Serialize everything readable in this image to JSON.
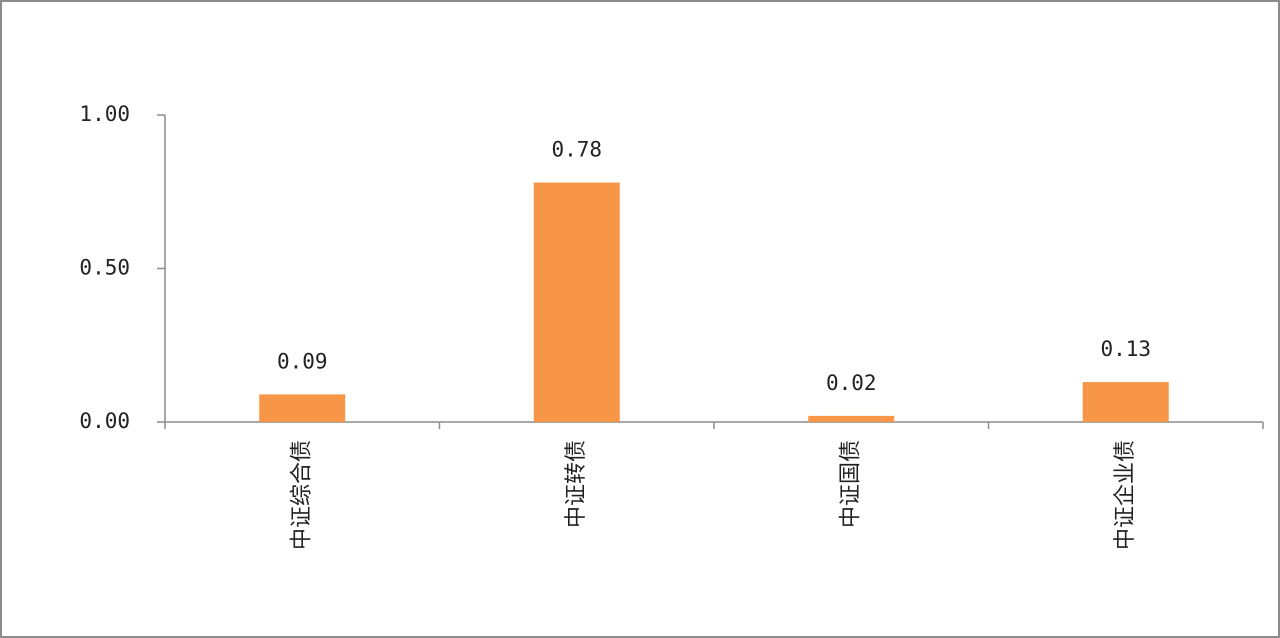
{
  "chart_data": {
    "type": "bar",
    "categories": [
      "中证综合债",
      "中证转债",
      "中证国债",
      "中证企业债"
    ],
    "values": [
      0.09,
      0.78,
      0.02,
      0.13
    ],
    "color": "#f79646",
    "ylim": [
      0,
      1
    ],
    "yticks": [
      {
        "value": 0,
        "label": "0.00"
      },
      {
        "value": 0.5,
        "label": "0.50"
      },
      {
        "value": 1,
        "label": "1.00"
      }
    ],
    "grid": false
  }
}
